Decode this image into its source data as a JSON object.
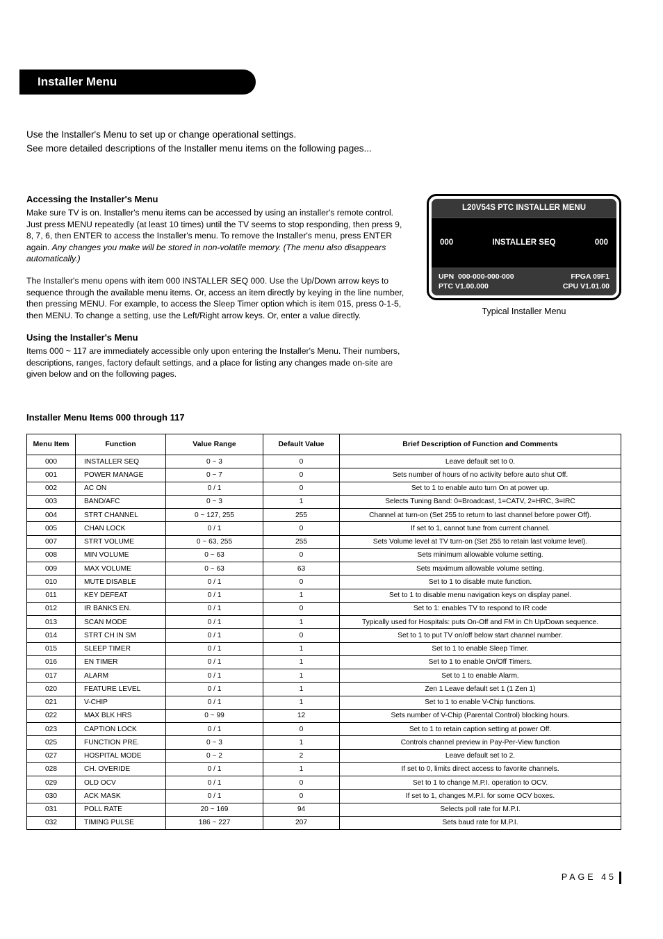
{
  "header": "Installer Menu",
  "intro": {
    "line1": "Use the Installer's Menu to set up or change operational settings.",
    "line2": "See more detailed descriptions of the Installer menu items on the following pages..."
  },
  "sections": {
    "access": {
      "title": "Accessing the Installer's Menu",
      "p1a": "Make sure TV is on. Installer's menu items can be accessed by using an installer's remote control. Just press MENU repeatedly (at least 10 times) until the TV seems to stop responding, then press 9, 8, 7, 6, then ENTER to access the Installer's menu. To remove the Installer's menu, press ENTER again. ",
      "p1b": "Any changes you make will be stored in non-volatile memory. (The menu also disappears automatically.)",
      "p2": "The Installer's menu opens with item 000 INSTALLER SEQ 000. Use the Up/Down arrow keys to sequence through the available menu items. Or, access an item directly by keying in the line number, then pressing MENU. For example, to access the Sleep Timer option which is item 015, press 0-1-5, then MENU. To change a setting, use the Left/Right arrow keys. Or, enter a value directly."
    },
    "using": {
      "title": "Using the Installer's Menu",
      "p1": "Items 000 ~ 117 are immediately accessible only upon entering the Installer's Menu. Their numbers, descriptions, ranges, factory default settings, and a place for listing any changes made on-site are given below and on the following pages."
    }
  },
  "menu_box": {
    "title": "L20V54S PTC INSTALLER MENU",
    "mid_left": "000",
    "mid_center": "INSTALLER SEQ",
    "mid_right": "000",
    "bot_upn_label": "UPN",
    "bot_upn_val": "000-000-000-000",
    "bot_fpga": "FPGA 09F1",
    "bot_ptc": "PTC V1.00.000",
    "bot_cpu": "CPU V1.01.00",
    "caption": "Typical Installer Menu"
  },
  "table_heading": "Installer Menu Items 000 through 117",
  "table": {
    "columns": [
      "Menu Item",
      "Function",
      "Value Range",
      "Default Value",
      "Brief Description of Function and Comments"
    ],
    "rows": [
      [
        "000",
        "INSTALLER SEQ",
        "0 ~ 3",
        "0",
        "Leave default set to 0."
      ],
      [
        "001",
        "POWER MANAGE",
        "0 ~ 7",
        "0",
        "Sets number of hours of no activity before auto shut Off."
      ],
      [
        "002",
        "AC ON",
        "0 / 1",
        "0",
        "Set to 1 to enable auto turn On at power up."
      ],
      [
        "003",
        "BAND/AFC",
        "0 ~ 3",
        "1",
        "Selects Tuning Band: 0=Broadcast, 1=CATV, 2=HRC, 3=IRC"
      ],
      [
        "004",
        "STRT CHANNEL",
        "0 ~ 127, 255",
        "255",
        "Channel at turn-on (Set 255 to return to last channel before power Off)."
      ],
      [
        "005",
        "CHAN LOCK",
        "0 / 1",
        "0",
        "If set to 1, cannot tune from current channel."
      ],
      [
        "007",
        "STRT VOLUME",
        "0 ~ 63, 255",
        "255",
        "Sets Volume level at TV turn-on (Set 255 to retain last volume level)."
      ],
      [
        "008",
        "MIN VOLUME",
        "0 ~ 63",
        "0",
        "Sets minimum allowable volume setting."
      ],
      [
        "009",
        "MAX VOLUME",
        "0 ~ 63",
        "63",
        "Sets maximum allowable volume setting."
      ],
      [
        "010",
        "MUTE DISABLE",
        "0 / 1",
        "0",
        "Set to 1 to disable mute function."
      ],
      [
        "011",
        "KEY DEFEAT",
        "0 / 1",
        "1",
        "Set to 1 to disable menu navigation keys on display panel."
      ],
      [
        "012",
        "IR BANKS EN.",
        "0 / 1",
        "0",
        "Set to 1: enables TV to respond to IR code"
      ],
      [
        "013",
        "SCAN MODE",
        "0 / 1",
        "1",
        "Typically used for Hospitals: puts On-Off and FM in Ch Up/Down sequence."
      ],
      [
        "014",
        "STRT CH IN SM",
        "0 / 1",
        "0",
        "Set to 1 to put TV on/off below start channel number."
      ],
      [
        "015",
        "SLEEP TIMER",
        "0 / 1",
        "1",
        "Set to 1 to enable Sleep Timer."
      ],
      [
        "016",
        "EN TIMER",
        "0 / 1",
        "1",
        "Set to 1 to enable On/Off Timers."
      ],
      [
        "017",
        "ALARM",
        "0 / 1",
        "1",
        "Set to 1 to enable Alarm."
      ],
      [
        "020",
        "FEATURE LEVEL",
        "0 / 1",
        "1",
        "Zen 1 Leave default set 1 (1 Zen 1)"
      ],
      [
        "021",
        "V-CHIP",
        "0 / 1",
        "1",
        "Set to 1 to enable V-Chip functions."
      ],
      [
        "022",
        "MAX BLK HRS",
        "0 ~ 99",
        "12",
        "Sets number of V-Chip (Parental Control) blocking hours."
      ],
      [
        "023",
        "CAPTION LOCK",
        "0 / 1",
        "0",
        "Set to 1 to retain caption setting at power Off."
      ],
      [
        "025",
        "FUNCTION PRE.",
        "0 ~ 3",
        "1",
        "Controls channel preview in Pay-Per-View function"
      ],
      [
        "027",
        "HOSPITAL MODE",
        "0 ~ 2",
        "2",
        "Leave default set to 2."
      ],
      [
        "028",
        "CH. OVERIDE",
        "0 / 1",
        "1",
        "If set to 0, limits direct access to favorite channels."
      ],
      [
        "029",
        "OLD OCV",
        "0 / 1",
        "0",
        "Set to 1 to change M.P.I. operation to OCV."
      ],
      [
        "030",
        "ACK MASK",
        "0 / 1",
        "0",
        "If set to 1, changes M.P.I. for some OCV boxes."
      ],
      [
        "031",
        "POLL RATE",
        "20 ~ 169",
        "94",
        "Selects poll rate for M.P.I."
      ],
      [
        "032",
        "TIMING PULSE",
        "186 ~ 227",
        "207",
        "Sets baud rate for M.P.I."
      ]
    ]
  },
  "page_number": "PAGE 45"
}
